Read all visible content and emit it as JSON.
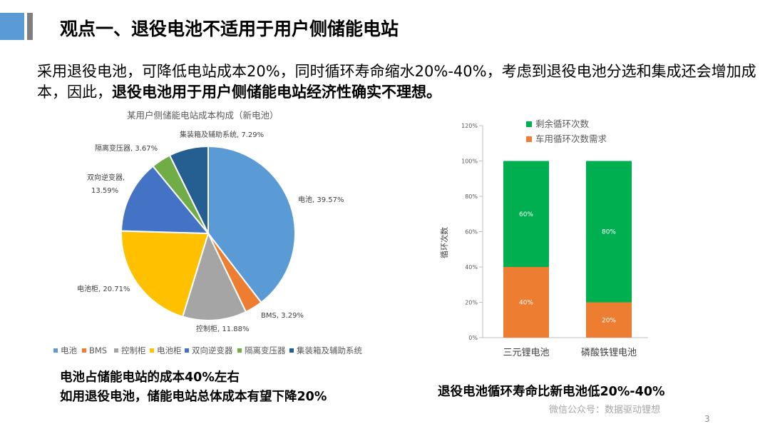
{
  "slide": {
    "title": "观点一、退役电池不适用于用户侧储能电站",
    "intro_text": "采用退役电池，可降低电站成本20%，同时循环寿命缩水20%-40%，考虑到退役电池分选和集成还会增加成本，因此，",
    "intro_bold": "退役电池用于用户侧储能电站经济性确实不理想。",
    "conclusion_left_1": "电池占储能电站的成本40%左右",
    "conclusion_left_2": "如用退役电池，储能电站总体成本有望下降20%",
    "conclusion_right": "退役电池循环寿命比新电池低20%-40%",
    "watermark": "微信公众号：数据驱动锂想",
    "page_number": "3"
  },
  "chart_data": [
    {
      "type": "pie",
      "title": "某用户侧储能电站成本构成（新电池）",
      "slices": [
        {
          "name": "电池",
          "value": 39.57,
          "label": "电池, 39.57%",
          "color": "#5b9bd5"
        },
        {
          "name": "BMS",
          "value": 3.29,
          "label": "BMS, 3.29%",
          "color": "#ed7d31"
        },
        {
          "name": "控制柜",
          "value": 11.88,
          "label": "控制柜, 11.88%",
          "color": "#a5a5a5"
        },
        {
          "name": "电池柜",
          "value": 20.71,
          "label": "电池柜, 20.71%",
          "color": "#ffc000"
        },
        {
          "name": "双向逆变器",
          "value": 13.59,
          "label": "双向逆变器, 13.59%",
          "color": "#4472c4"
        },
        {
          "name": "隔离变压器",
          "value": 3.67,
          "label": "隔离变压器, 3.67%",
          "color": "#70ad47"
        },
        {
          "name": "集装箱及辅助系统",
          "value": 7.29,
          "label": "集装箱及辅助系统, 7.29%",
          "color": "#255e91"
        }
      ],
      "legend": "bottom"
    },
    {
      "type": "bar",
      "stacked": true,
      "categories": [
        "三元锂电池",
        "磷酸铁锂电池"
      ],
      "series": [
        {
          "name": "车用循环次数需求",
          "values": [
            40,
            20
          ],
          "labels": [
            "40%",
            "20%"
          ],
          "color": "#ed7d31"
        },
        {
          "name": "剩余循环次数",
          "values": [
            60,
            80
          ],
          "labels": [
            "60%",
            "80%"
          ],
          "color": "#00b050"
        }
      ],
      "ylabel": "循环次数",
      "ylim": [
        0,
        120
      ],
      "yticks": [
        "0%",
        "20%",
        "40%",
        "60%",
        "80%",
        "100%",
        "120%"
      ],
      "legend": "top",
      "legend_order": [
        "剩余循环次数",
        "车用循环次数需求"
      ]
    }
  ]
}
